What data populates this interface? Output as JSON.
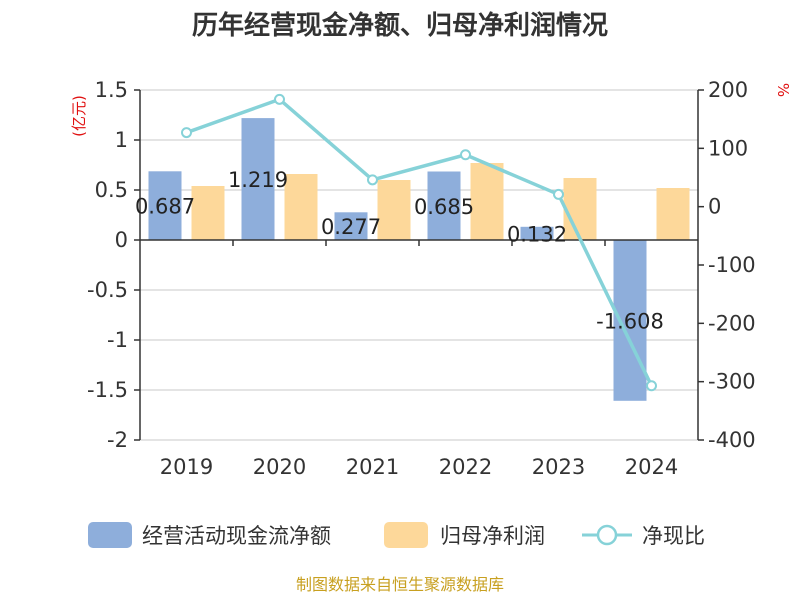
{
  "title": "历年经营现金净额、归母净利润情况",
  "source": "制图数据来自恒生聚源数据库",
  "chart_data": {
    "type": "bar",
    "categories": [
      "2019",
      "2020",
      "2021",
      "2022",
      "2023",
      "2024"
    ],
    "series": [
      {
        "name": "经营活动现金流净额",
        "kind": "bar",
        "axis": "left",
        "color": "#8eaedb",
        "values": [
          0.687,
          1.219,
          0.277,
          0.685,
          0.132,
          -1.608
        ],
        "labels": [
          "0.687",
          "1.219",
          "0.277",
          "0.685",
          "0.132",
          "-1.608"
        ]
      },
      {
        "name": "归母净利润",
        "kind": "bar",
        "axis": "left",
        "color": "#fdd89a",
        "values": [
          0.54,
          0.66,
          0.6,
          0.77,
          0.62,
          0.52
        ]
      },
      {
        "name": "净现比",
        "kind": "line",
        "axis": "right",
        "color": "#86d2d8",
        "values": [
          127,
          184,
          46,
          89,
          21,
          -307
        ]
      }
    ],
    "left_axis": {
      "unit": "(亿元)",
      "ylim": [
        -2,
        1.5
      ],
      "ticks": [
        1.5,
        1,
        0.5,
        0,
        -0.5,
        -1,
        -1.5,
        -2
      ],
      "tick_labels": [
        "1.5",
        "1",
        "0.5",
        "0",
        "-0.5",
        "-1",
        "-1.5",
        "-2"
      ]
    },
    "right_axis": {
      "unit": "%",
      "ylim": [
        -400,
        200
      ],
      "ticks": [
        200,
        100,
        0,
        -100,
        -200,
        -300,
        -400
      ],
      "tick_labels": [
        "200",
        "100",
        "0",
        "-100",
        "-200",
        "-300",
        "-400"
      ]
    },
    "grid": true,
    "legend_position": "bottom"
  }
}
